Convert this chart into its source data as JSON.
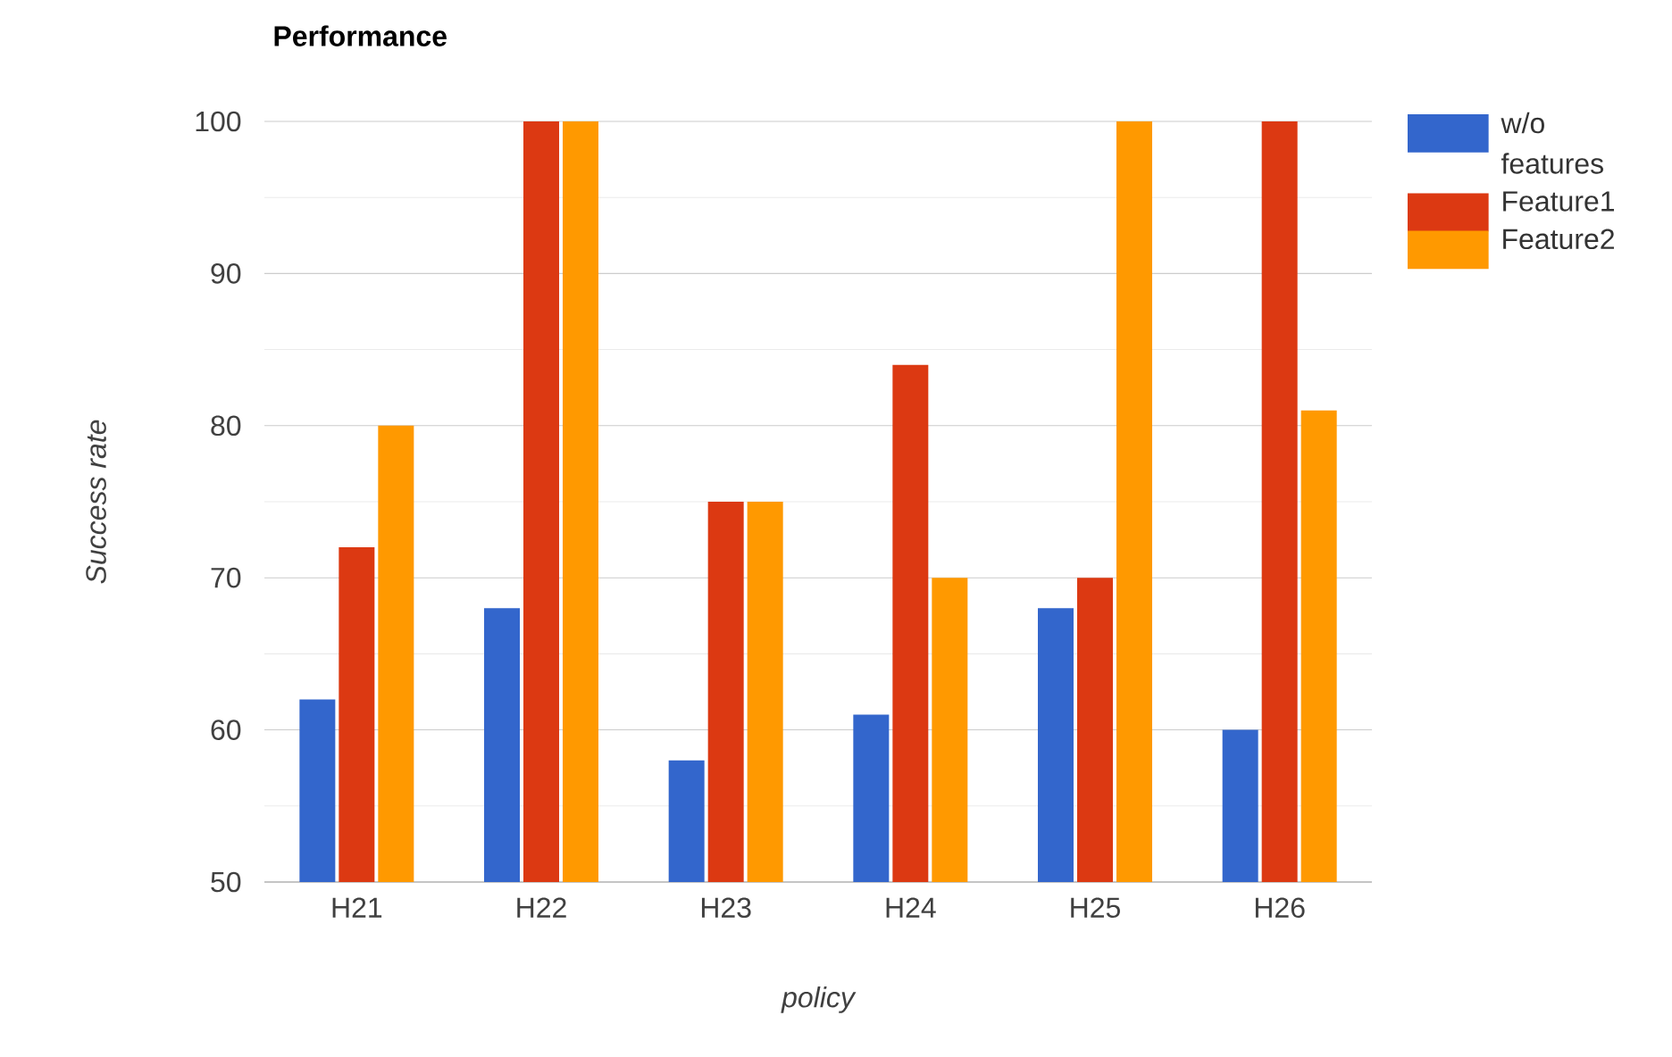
{
  "chart_data": {
    "type": "bar",
    "title": "Performance",
    "xlabel": "policy",
    "ylabel": "Success rate",
    "categories": [
      "H21",
      "H22",
      "H23",
      "H24",
      "H25",
      "H26"
    ],
    "series": [
      {
        "name": "w/o features",
        "color": "#3366cc",
        "values": [
          62,
          68,
          58,
          61,
          68,
          60
        ]
      },
      {
        "name": "Feature1",
        "color": "#dc3912",
        "values": [
          72,
          100,
          75,
          84,
          70,
          100
        ]
      },
      {
        "name": "Feature2",
        "color": "#ff9900",
        "values": [
          80,
          100,
          75,
          70,
          100,
          81
        ]
      }
    ],
    "ylim": [
      50,
      100
    ],
    "yticks": [
      50,
      {
        "value": 55,
        "label": null
      },
      60,
      {
        "value": 65,
        "label": null
      },
      70,
      {
        "value": 75,
        "label": null
      },
      80,
      {
        "value": 85,
        "label": null
      },
      90,
      {
        "value": 95,
        "label": null
      },
      100
    ],
    "grid": "y",
    "legend": "right"
  }
}
